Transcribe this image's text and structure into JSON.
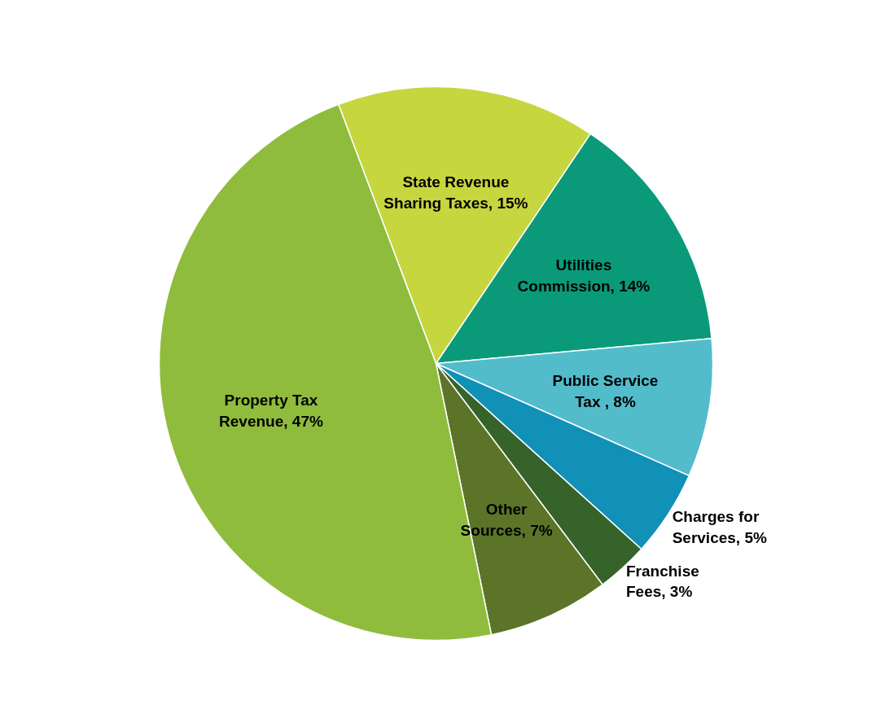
{
  "chart_data": {
    "type": "pie",
    "categories": [
      "State Revenue Sharing Taxes",
      "Utilities Commission",
      "Public Service Tax ",
      "Charges for Services",
      "Franchise Fees",
      "Other Sources",
      "Property Tax Revenue"
    ],
    "values": [
      15,
      14,
      8,
      5,
      3,
      7,
      47
    ],
    "value_labels": [
      "15%",
      "14%",
      "8%",
      "5%",
      "3%",
      "7%",
      "47%"
    ],
    "colors": [
      "#c5d63f",
      "#0a9a7a",
      "#52bccb",
      "#1190b8",
      "#35632a",
      "#5c7428",
      "#8fbc3c"
    ],
    "legend": false
  }
}
